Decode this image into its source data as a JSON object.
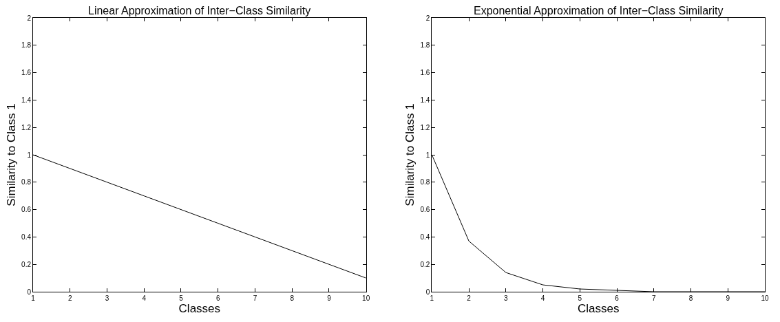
{
  "chart_data": [
    {
      "type": "line",
      "title": "Linear Approximation of Inter−Class Similarity",
      "xlabel": "Classes",
      "ylabel": "Similarity to Class 1",
      "x": [
        1,
        2,
        3,
        4,
        5,
        6,
        7,
        8,
        9,
        10
      ],
      "series": [
        {
          "color": "#000000",
          "values": [
            1,
            0.9,
            0.8,
            0.7,
            0.6,
            0.5,
            0.4,
            0.3,
            0.2,
            0.1
          ]
        }
      ],
      "xlim": [
        1,
        10
      ],
      "xticks": [
        1,
        2,
        3,
        4,
        5,
        6,
        7,
        8,
        9,
        10
      ],
      "ylim": [
        0,
        2
      ],
      "yticks": [
        0,
        0.2,
        0.4,
        0.6,
        0.8,
        1,
        1.2,
        1.4,
        1.6,
        1.8,
        2
      ],
      "marker": "none",
      "line_style": "solid"
    },
    {
      "type": "line",
      "title": "Exponential Approximation of Inter−Class Similarity",
      "xlabel": "Classes",
      "ylabel": "Similarity to Class 1",
      "x": [
        1,
        2,
        3,
        4,
        5,
        6,
        7,
        8,
        9,
        10
      ],
      "series": [
        {
          "color": "#000000",
          "values": [
            1,
            0.37,
            0.14,
            0.05,
            0.02,
            0.01,
            0,
            0,
            0,
            0
          ]
        }
      ],
      "xlim": [
        1,
        10
      ],
      "xticks": [
        1,
        2,
        3,
        4,
        5,
        6,
        7,
        8,
        9,
        10
      ],
      "ylim": [
        0,
        2
      ],
      "yticks": [
        0,
        0.2,
        0.4,
        0.6,
        0.8,
        1,
        1.2,
        1.4,
        1.6,
        1.8,
        2
      ],
      "marker": "none",
      "line_style": "solid"
    }
  ]
}
